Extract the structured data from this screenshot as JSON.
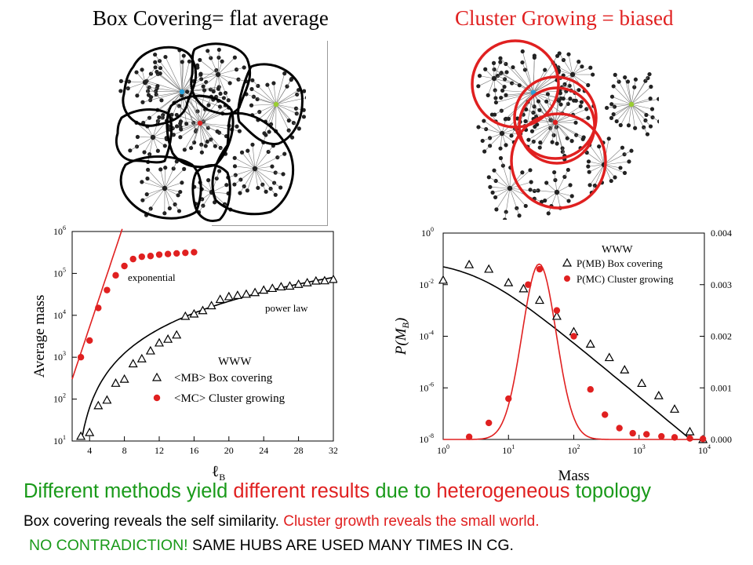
{
  "titles": {
    "left": "Box Covering= flat average",
    "right": "Cluster Growing = biased"
  },
  "caption": {
    "part1": "Different methods yield ",
    "part2": "different results",
    "part3": " due to ",
    "part4": "heterogeneous",
    "part5": " topology",
    "line2_a": "Box covering reveals the self similarity. ",
    "line2_b": "Cluster growth reveals the small world.",
    "line3_a": "NO CONTRADICTION! ",
    "line3_b": "SAME HUBS ARE USED MANY TIMES IN CG."
  },
  "colors": {
    "red": "#e02020",
    "green": "#1a9a1a",
    "black": "#000000",
    "hub_blue": "#2aa0d8",
    "hub_green": "#9acd32"
  },
  "chart_data": [
    {
      "type": "scatter",
      "xlabel": "ℓB",
      "ylabel": "Average mass",
      "x_ticks": [
        "4",
        "8",
        "12",
        "16",
        "20",
        "24",
        "28",
        "32"
      ],
      "y_ticks": [
        "10^1",
        "10^2",
        "10^3",
        "10^4",
        "10^5",
        "10^6"
      ],
      "xlim": [
        2,
        32
      ],
      "ylim": [
        10,
        1000000
      ],
      "yscale": "log",
      "legend": {
        "title": "WWW",
        "entries": [
          "<MB> Box covering",
          "<MC> Cluster growing"
        ]
      },
      "annotations": [
        "exponential",
        "power law"
      ],
      "series": [
        {
          "name": "<MB> Box covering",
          "marker": "open-triangle",
          "x": [
            3,
            4,
            5,
            6,
            7,
            8,
            9,
            10,
            11,
            12,
            13,
            14,
            15,
            16,
            17,
            18,
            19,
            20,
            21,
            22,
            23,
            24,
            25,
            26,
            27,
            28,
            29,
            30,
            31,
            32
          ],
          "y": [
            13,
            16,
            70,
            95,
            240,
            300,
            700,
            920,
            1420,
            2200,
            2700,
            3400,
            9500,
            10800,
            13000,
            17000,
            24000,
            28000,
            30000,
            32000,
            35000,
            40000,
            44000,
            48000,
            50000,
            55000,
            60000,
            66000,
            67000,
            72000
          ]
        },
        {
          "name": "<MC> Cluster growing",
          "marker": "filled-circle",
          "x": [
            3,
            4,
            5,
            6,
            7,
            8,
            9,
            10,
            11,
            12,
            13,
            14,
            15,
            16
          ],
          "y": [
            1000,
            2500,
            15000,
            40000,
            90000,
            150000,
            220000,
            250000,
            260000,
            280000,
            290000,
            300000,
            310000,
            320000
          ]
        }
      ],
      "fits": [
        "exponential fit (red line)",
        "power law fit (black curve)"
      ]
    },
    {
      "type": "scatter",
      "xlabel": "Mass",
      "ylabel": "P(MB)",
      "x_ticks": [
        "10^0",
        "10^1",
        "10^2",
        "10^3",
        "10^4"
      ],
      "y_ticks_left": [
        "10^0",
        "10^-2",
        "10^-4",
        "10^-6",
        "10^-8"
      ],
      "y_ticks_right": [
        "0.004",
        "0.003",
        "0.002",
        "0.001",
        "0.000"
      ],
      "xlim": [
        1,
        10000
      ],
      "ylim_left": [
        1e-08,
        1
      ],
      "ylim_right": [
        0,
        0.004
      ],
      "xscale": "log",
      "yscale_left": "log",
      "legend": {
        "title": "WWW",
        "entries": [
          "P(MB) Box covering",
          "P(MC) Cluster growing"
        ]
      },
      "series": [
        {
          "name": "P(MB) Box covering",
          "marker": "open-triangle",
          "axis": "left",
          "x": [
            1,
            2.5,
            5,
            10,
            17,
            30,
            55,
            100,
            180,
            350,
            600,
            1100,
            2000,
            3500,
            6000,
            9500
          ],
          "y": [
            0.015,
            0.06,
            0.04,
            0.012,
            0.007,
            0.0025,
            0.0006,
            0.00015,
            5e-05,
            1.5e-05,
            5e-06,
            1.5e-06,
            5e-07,
            1.5e-07,
            2e-08,
            1e-08
          ]
        },
        {
          "name": "P(MC) Cluster growing",
          "marker": "filled-circle",
          "axis": "right",
          "x": [
            2.5,
            5,
            10,
            20,
            30,
            55,
            100,
            180,
            300,
            500,
            800,
            1300,
            2200,
            3500,
            6000,
            9500
          ],
          "y": [
            5e-05,
            0.00032,
            0.00079,
            0.003,
            0.0033,
            0.0025,
            0.002,
            0.00097,
            0.00048,
            0.00022,
            0.00012,
            0.0001,
            6e-05,
            4e-05,
            2e-05,
            1e-05
          ]
        }
      ]
    }
  ]
}
